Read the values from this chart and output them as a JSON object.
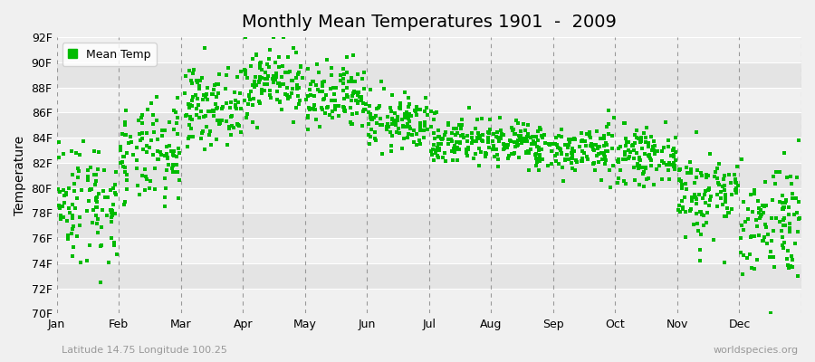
{
  "title": "Monthly Mean Temperatures 1901  -  2009",
  "ylabel": "Temperature",
  "ylim": [
    70,
    92
  ],
  "yticks": [
    70,
    72,
    74,
    76,
    78,
    80,
    82,
    84,
    86,
    88,
    90,
    92
  ],
  "ytick_labels": [
    "70F",
    "72F",
    "74F",
    "76F",
    "78F",
    "80F",
    "82F",
    "84F",
    "86F",
    "88F",
    "90F",
    "92F"
  ],
  "months": [
    "Jan",
    "Feb",
    "Mar",
    "Apr",
    "May",
    "Jun",
    "Jul",
    "Aug",
    "Sep",
    "Oct",
    "Nov",
    "Dec"
  ],
  "month_means_F": [
    79.0,
    82.5,
    86.5,
    88.5,
    87.0,
    85.2,
    83.8,
    83.5,
    83.0,
    82.5,
    79.5,
    77.5
  ],
  "month_stds_F": [
    2.5,
    2.0,
    1.5,
    1.4,
    1.4,
    1.1,
    1.0,
    0.9,
    1.0,
    1.0,
    1.8,
    2.4
  ],
  "n_years": 109,
  "marker_color": "#00BB00",
  "marker_size": 2.5,
  "bg_color": "#F0F0F0",
  "band_light": "#F0F0F0",
  "band_dark": "#E4E4E4",
  "hgrid_color": "#FFFFFF",
  "dashed_color": "#999999",
  "title_fontsize": 14,
  "label_fontsize": 10,
  "tick_fontsize": 9,
  "legend_label": "Mean Temp",
  "bottom_left": "Latitude 14.75 Longitude 100.25",
  "bottom_right": "worldspecies.org",
  "seed": 42
}
